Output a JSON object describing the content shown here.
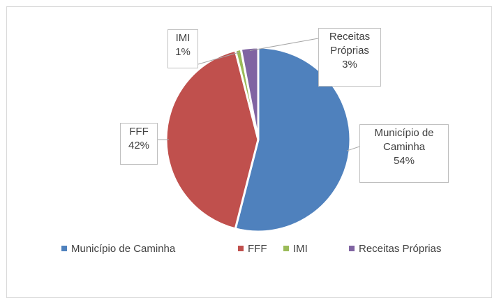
{
  "chart_data": {
    "type": "pie",
    "categories": [
      "Município de Caminha",
      "FFF",
      "IMI",
      "Receitas Próprias"
    ],
    "values": [
      54,
      42,
      1,
      3
    ],
    "value_labels": [
      "54%",
      "42%",
      "1%",
      "3%"
    ],
    "colors": [
      "#4f81bd",
      "#c0504d",
      "#9bbb59",
      "#8064a2"
    ],
    "legend": "bottom"
  }
}
